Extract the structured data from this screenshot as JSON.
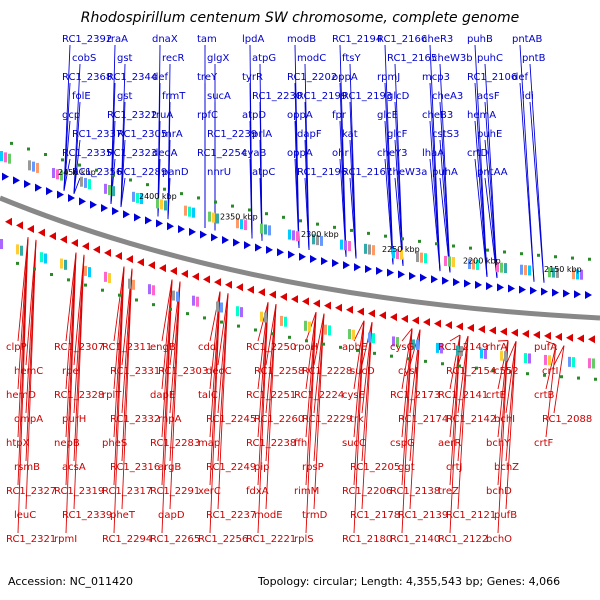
{
  "title": "Rhodospirillum centenum SW chromosome, complete genome",
  "accession": "Accession: NC_011420",
  "topology": "Topology: circular; Length: 4,355,543 bp; Genes: 4,066",
  "colors": {
    "forward": "#0000dd",
    "reverse": "#dd0000",
    "backbone": "#888888",
    "tick": "#2a8a2a",
    "forward_label": "#0000cc",
    "reverse_label": "#cc0000"
  },
  "kbp_marks": [
    "2450 kbp",
    "2400 kbp",
    "2350 kbp",
    "2300 kbp",
    "2250 kbp",
    "2200 kbp",
    "2150 kbp"
  ],
  "forward_labels": [
    "RC1_2392",
    "cobS",
    "RC1_2368",
    "folE",
    "gcp",
    "RC1_2337",
    "RC1_2335",
    "RC1_2356",
    "rraA",
    "gst",
    "RC1_2344",
    "gst",
    "RC1_2322",
    "RC1_2305",
    "RC1_2323",
    "RC1_2289",
    "dnaX",
    "recR",
    "def",
    "frmT",
    "truA",
    "mrA",
    "deoA",
    "panD",
    "tam",
    "glgX",
    "treY",
    "sucA",
    "rpfC",
    "RC1_2239",
    "RC1_2254",
    "nnrU",
    "lpdA",
    "atpG",
    "tyrR",
    "RC1_2230",
    "atpD",
    "prlA",
    "cyaB",
    "atpC",
    "modB",
    "modC",
    "RC1_2202",
    "RC1_2199",
    "oppA",
    "dapF",
    "oppA",
    "RC1_2196",
    "RC1_2194",
    "ftsY",
    "oppA",
    "RC1_2193",
    "fpr",
    "kat",
    "ohr",
    "RC1_2167",
    "RC1_2166",
    "RC1_2165",
    "rpmJ",
    "glcD",
    "glcE",
    "glcF",
    "cheY3",
    "cheW3a",
    "cheR3",
    "cheW3b",
    "mcp3",
    "cheA3",
    "cheB3",
    "cstS3",
    "lhaA",
    "puhA",
    "puhB",
    "puhC",
    "RC1_2106",
    "acsF",
    "hemA",
    "puhE",
    "crtD",
    "pntAA",
    "pntAB",
    "pntB",
    "def",
    "idi"
  ],
  "reverse_labels": [
    "clpP",
    "hemC",
    "hemD",
    "ompA",
    "htpX",
    "rsmB",
    "RC1_2327",
    "leuC",
    "RC1_2321",
    "RC1_2307",
    "rpe",
    "RC1_2328",
    "purH",
    "nepB",
    "acsA",
    "RC1_2319",
    "RC1_2339",
    "rpmI",
    "RC1_2311",
    "RC1_2331",
    "rplT",
    "RC1_2332",
    "pheS",
    "RC1_2316",
    "RC1_2317",
    "pheT",
    "RC1_2294",
    "engB",
    "RC1_2303",
    "dapE",
    "rnpA",
    "RC1_2283",
    "argB",
    "RC1_2291",
    "dapD",
    "RC1_2265",
    "cdd",
    "deoC",
    "talC",
    "RC1_2245",
    "map",
    "RC1_2249",
    "xerC",
    "RC1_2237",
    "RC1_2256",
    "RC1_2250",
    "RC1_2258",
    "RC1_2251",
    "RC1_2260",
    "RC1_2238",
    "pip",
    "fdxA",
    "modE",
    "RC1_2221",
    "rpoH",
    "RC1_2228",
    "RC1_2224",
    "RC1_2229",
    "ffh",
    "rpsP",
    "rimM",
    "trmD",
    "rplS",
    "apbE",
    "sucD",
    "cysE",
    "trk",
    "sucC",
    "RC1_2205",
    "RC1_2206",
    "RC1_2178",
    "RC1_2180",
    "cysG",
    "cysI",
    "RC1_2173",
    "RC1_2174",
    "cspG",
    "ggt",
    "RC1_2138",
    "RC1_2139",
    "RC1_2140",
    "RC1_2149",
    "RC1_2154",
    "RC1_2141",
    "RC1_2142",
    "aerR",
    "crtJ",
    "treZ",
    "RC1_2121",
    "RC1_2122",
    "rhrA",
    "c552",
    "crtE",
    "bchI",
    "bchY",
    "bchZ",
    "bchD",
    "pufB",
    "bchO",
    "pufA",
    "crtI",
    "crtB",
    "RC1_2088",
    "crtF"
  ]
}
